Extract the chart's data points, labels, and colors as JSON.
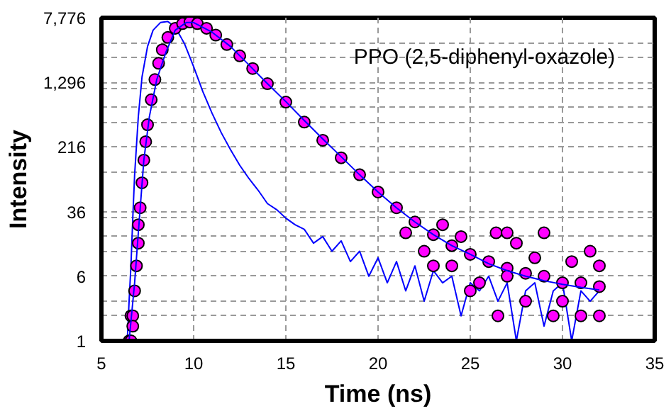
{
  "chart_data": {
    "type": "line",
    "xlabel": "Time (ns)",
    "ylabel": "Intensity",
    "log": "y",
    "grid": true,
    "xlim": [
      5,
      35
    ],
    "xticks": [
      5,
      10,
      15,
      20,
      25,
      30,
      35
    ],
    "ylim": [
      1,
      7776
    ],
    "yticks": [
      1,
      {
        "value": 2,
        "label": null
      },
      {
        "value": 3,
        "label": null
      },
      6,
      {
        "value": 12,
        "label": null
      },
      {
        "value": 18,
        "label": null
      },
      {
        "value": 30,
        "label": null
      },
      36,
      {
        "value": 108,
        "label": null
      },
      216,
      {
        "value": 432,
        "label": null
      },
      {
        "value": 648,
        "label": null
      },
      {
        "value": 1080,
        "label": null
      },
      {
        "value": 1296,
        "label": "1,296"
      },
      {
        "value": 2592,
        "label": null
      },
      {
        "value": 3888,
        "label": null
      },
      {
        "value": 7776,
        "label": "7,776"
      }
    ],
    "annotations": [
      "PPO (2,5-diphenyl-oxazole)"
    ],
    "series": [
      {
        "color": "#0000ff",
        "x": [
          6.4,
          6.5,
          6.6,
          6.7,
          6.8,
          7.0,
          7.2,
          7.5,
          7.8,
          8.2,
          8.6,
          9.0,
          9.5,
          10,
          10.5,
          11,
          11.5,
          12,
          12.5,
          13,
          13.5,
          14,
          14.5,
          15,
          15.5,
          16,
          16.5,
          17,
          17.5,
          18,
          18.5,
          19,
          19.5,
          20,
          20.5,
          21,
          21.5,
          22,
          22.5,
          23,
          23.5,
          24,
          24.5,
          25,
          25.5,
          26,
          26.5,
          27,
          27.5,
          28,
          28.5,
          29,
          29.5,
          30,
          30.5,
          31,
          31.5,
          32
        ],
        "values": [
          1,
          3,
          8,
          30,
          100,
          500,
          1500,
          3500,
          5500,
          6800,
          7000,
          6000,
          3800,
          2000,
          1000,
          550,
          320,
          200,
          130,
          90,
          65,
          45,
          38,
          30,
          25,
          22,
          15,
          18,
          12,
          16,
          9,
          12,
          6,
          10,
          5,
          9,
          4,
          8,
          3,
          7,
          5,
          6,
          2,
          5,
          4,
          6,
          3,
          5,
          1,
          4,
          5,
          1.5,
          4,
          5,
          1,
          4,
          3,
          4
        ]
      },
      {
        "type": "scatter",
        "marker": "circle",
        "color": "#ff00ff",
        "x": [
          6.5,
          6.6,
          6.6,
          6.7,
          6.7,
          6.8,
          6.9,
          7.0,
          7.0,
          7.1,
          7.2,
          7.3,
          7.4,
          7.5,
          7.7,
          7.9,
          8.1,
          8.3,
          8.6,
          9.0,
          9.4,
          9.8,
          10.2,
          10.7,
          11.2,
          11.8,
          12.5,
          13.2,
          14,
          15,
          16,
          17,
          18,
          19,
          20,
          21,
          22,
          23,
          24,
          25,
          26,
          27,
          28,
          29,
          30,
          31,
          32,
          21.5,
          22.5,
          23.5,
          24,
          24.5,
          25.5,
          26.4,
          26.5,
          27,
          27.5,
          28,
          28.5,
          29,
          29.5,
          30,
          30.5,
          31,
          31.5,
          32,
          32,
          27,
          25,
          23
        ],
        "values": [
          1,
          1,
          2,
          2,
          1.5,
          4,
          8,
          15,
          25,
          40,
          80,
          150,
          250,
          400,
          800,
          1400,
          2200,
          3200,
          4500,
          5800,
          6600,
          6900,
          6600,
          5800,
          4800,
          3700,
          2700,
          1900,
          1250,
          750,
          430,
          260,
          160,
          100,
          62,
          40,
          27,
          19,
          14,
          11,
          9,
          7.5,
          6.5,
          6,
          5,
          5,
          4.5,
          20,
          12,
          25,
          8,
          18,
          5,
          20,
          2,
          6,
          15,
          3,
          10,
          20,
          2,
          3,
          9,
          2,
          12,
          2,
          8,
          20,
          4,
          8
        ]
      },
      {
        "color": "#0000ff",
        "x": [
          6.5,
          6.8,
          7,
          7.3,
          7.6,
          8,
          8.5,
          9,
          9.6,
          10,
          11,
          12,
          13,
          14,
          15,
          16,
          17,
          18,
          19,
          20,
          21,
          22,
          23,
          24,
          25,
          26,
          27,
          28,
          29,
          30,
          31,
          32
        ],
        "values": [
          1,
          5,
          20,
          150,
          500,
          1400,
          3000,
          5500,
          6800,
          6800,
          5200,
          3500,
          2100,
          1250,
          760,
          450,
          270,
          165,
          100,
          62,
          40,
          27,
          19,
          14,
          11,
          8.5,
          7,
          6,
          5.3,
          4.8,
          4.4,
          4.1
        ]
      }
    ]
  }
}
